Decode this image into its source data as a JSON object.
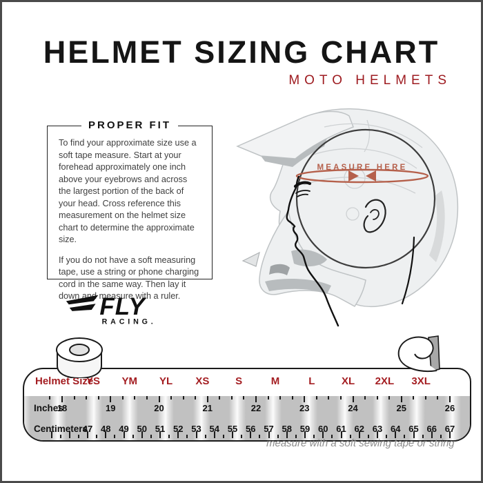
{
  "header": {
    "title": "HELMET SIZING CHART",
    "subtitle": "MOTO HELMETS"
  },
  "proper_fit": {
    "title": "PROPER FIT",
    "p1": "To find your approximate size use a soft tape measure. Start at your forehead approximately one inch above your eyebrows and across the largest portion of the back of your head. Cross reference this measurement on the helmet size chart to determine the approximate size.",
    "p2": "If you do not have a soft measuring tape, use a string or phone charging cord in the same way. Then lay it down and measure with a ruler."
  },
  "brand": {
    "fly": "FLY",
    "racing": "RACING."
  },
  "diagram": {
    "measure_label": "MEASURE HERE"
  },
  "tape": {
    "size_label": "Helmet Size",
    "sizes": [
      "YS",
      "YM",
      "YL",
      "XS",
      "S",
      "M",
      "L",
      "XL",
      "2XL",
      "3XL"
    ],
    "inches_label": "Inches",
    "inches": [
      "18",
      "19",
      "20",
      "21",
      "22",
      "23",
      "24",
      "25",
      "26"
    ],
    "cm_label": "Centimeters",
    "centimeters": [
      "47",
      "48",
      "49",
      "50",
      "51",
      "52",
      "53",
      "54",
      "55",
      "56",
      "57",
      "58",
      "59",
      "60",
      "61",
      "62",
      "63",
      "64",
      "65",
      "66",
      "67"
    ]
  },
  "caption": "measure with a soft sewing tape or string",
  "colors": {
    "accent_red": "#A41E22",
    "subtitle_red": "#9E1B20",
    "measure_terracotta": "#B5604B",
    "caption_gray": "#8C8C8C",
    "frame_gray": "#4A4A4A"
  }
}
